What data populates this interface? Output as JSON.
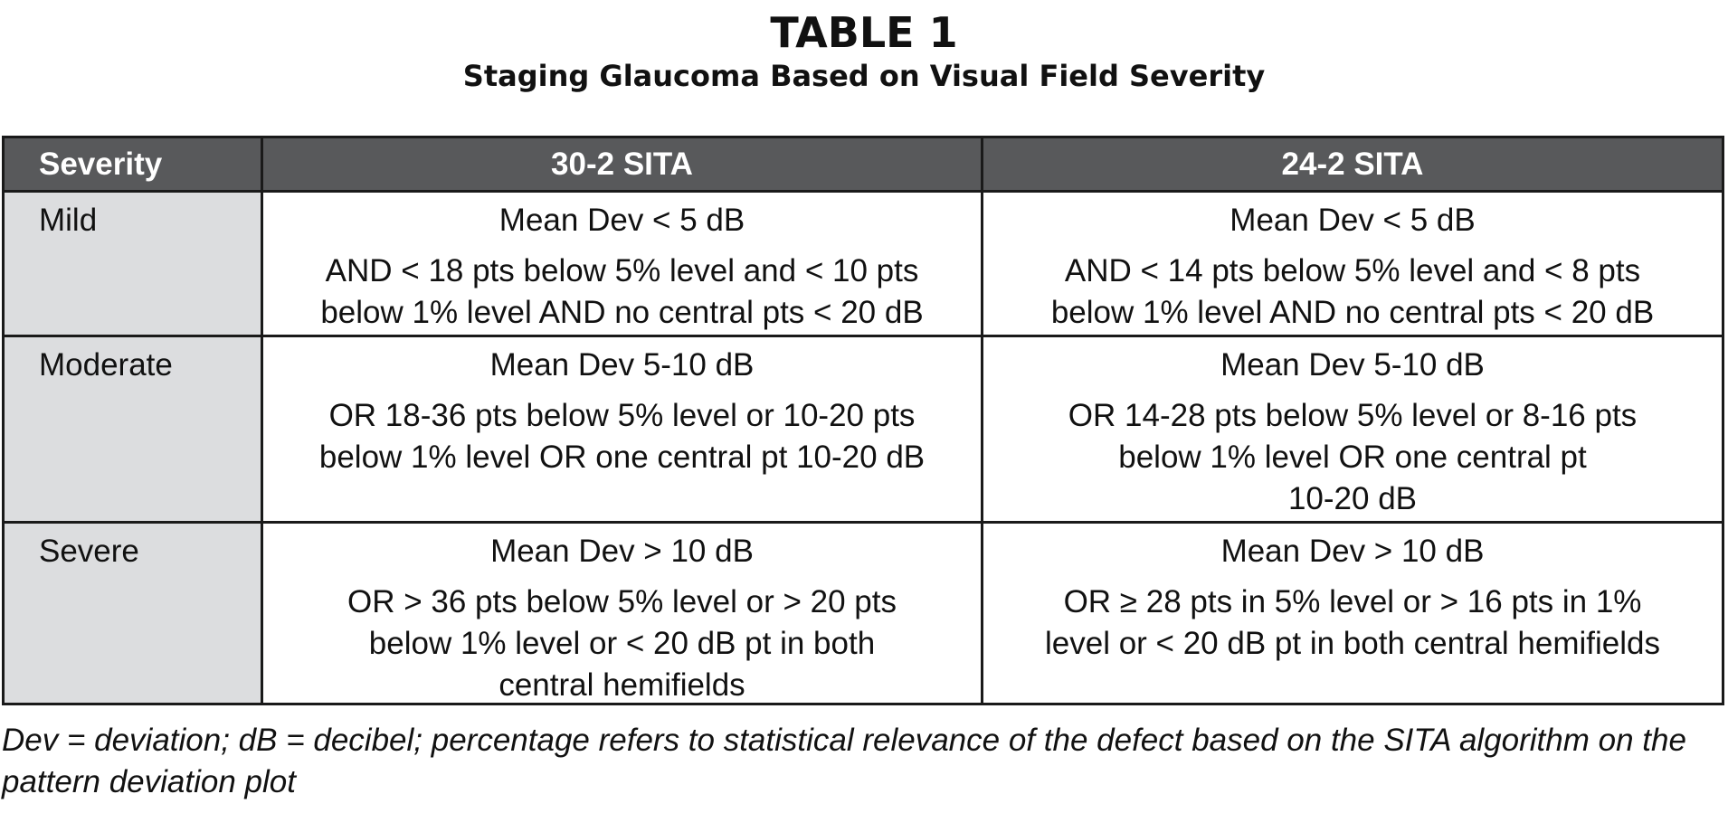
{
  "title": "TABLE 1",
  "subtitle": "Staging Glaucoma Based on Visual Field Severity",
  "table": {
    "headers": [
      "Severity",
      "30-2 SITA",
      "24-2 SITA"
    ],
    "rows": [
      {
        "severity": "Mild",
        "sita302": {
          "mean": "Mean Dev < 5 dB",
          "criteria": "AND < 18 pts below 5% level and < 10 pts\nbelow 1% level AND no central pts < 20 dB"
        },
        "sita242": {
          "mean": "Mean Dev < 5 dB",
          "criteria": "AND < 14 pts below 5% level and < 8 pts\nbelow 1% level AND no central pts < 20 dB"
        }
      },
      {
        "severity": "Moderate",
        "sita302": {
          "mean": "Mean Dev 5-10 dB",
          "criteria": "OR 18-36 pts below 5% level or 10-20 pts\nbelow 1% level OR one central pt 10-20 dB"
        },
        "sita242": {
          "mean": "Mean Dev 5-10 dB",
          "criteria": "OR 14-28 pts below 5% level or 8-16 pts\nbelow 1% level OR one central pt\n10-20 dB"
        }
      },
      {
        "severity": "Severe",
        "sita302": {
          "mean": "Mean Dev > 10 dB",
          "criteria": "OR > 36 pts below 5% level or > 20 pts\nbelow 1% level or < 20 dB pt in both\ncentral hemifields"
        },
        "sita242": {
          "mean": "Mean Dev > 10 dB",
          "criteria": "OR ≥ 28 pts in 5% level or > 16 pts in 1%\nlevel or < 20 dB pt in both central hemifields"
        }
      }
    ]
  },
  "footnote": "Dev = deviation; dB = decibel; percentage refers to statistical relevance of the defect based on the SITA algorithm on the pattern deviation plot",
  "colors": {
    "header_bg": "#58595b",
    "severity_col_bg": "#dcdddf",
    "border": "#1a1a1a"
  }
}
